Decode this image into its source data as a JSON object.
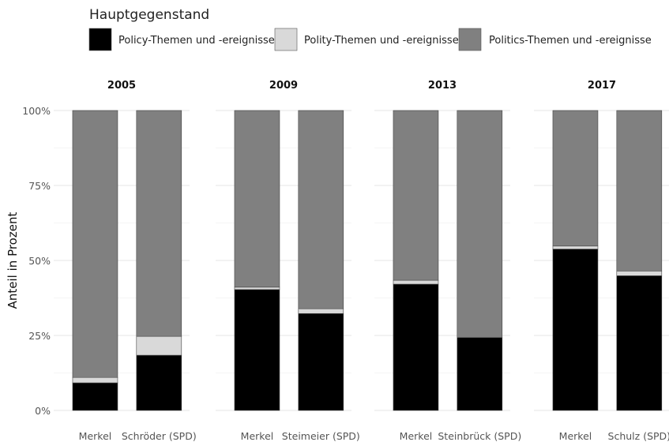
{
  "chart_data": {
    "type": "bar",
    "stacked": true,
    "ylabel": "Anteil in Prozent",
    "ylim": [
      0,
      100
    ],
    "yticks": [
      "0%",
      "25%",
      "50%",
      "75%",
      "100%"
    ],
    "legend": {
      "title": "Hauptgegenstand",
      "placement": "top",
      "entries": [
        {
          "label": "Policy-Themen und -ereignisse",
          "color": "#000000"
        },
        {
          "label": "Polity-Themen und -ereignisse",
          "color": "#d9d9d9"
        },
        {
          "label": "Politics-Themen und -ereignisse",
          "color": "#808080"
        }
      ]
    },
    "series_order": [
      "Policy-Themen und -ereignisse",
      "Polity-Themen und -ereignisse",
      "Politics-Themen und -ereignisse"
    ],
    "facets": [
      {
        "title": "2005",
        "bars": [
          {
            "category": "Merkel",
            "values": [
              9.2,
              1.8,
              89.0
            ]
          },
          {
            "category": "Schröder (SPD)",
            "values": [
              18.4,
              6.3,
              75.3
            ]
          }
        ]
      },
      {
        "title": "2009",
        "bars": [
          {
            "category": "Merkel",
            "values": [
              40.3,
              0.8,
              58.9
            ]
          },
          {
            "category": "Steimeier (SPD)",
            "values": [
              32.3,
              1.6,
              66.1
            ]
          }
        ]
      },
      {
        "title": "2013",
        "bars": [
          {
            "category": "Merkel",
            "values": [
              42.1,
              1.3,
              56.6
            ]
          },
          {
            "category": "Steinbrück (SPD)",
            "values": [
              24.3,
              0.0,
              75.7
            ]
          }
        ]
      },
      {
        "title": "2017",
        "bars": [
          {
            "category": "Merkel",
            "values": [
              53.8,
              1.0,
              45.2
            ]
          },
          {
            "category": "Schulz (SPD)",
            "values": [
              44.9,
              1.6,
              53.5
            ]
          }
        ]
      }
    ]
  }
}
